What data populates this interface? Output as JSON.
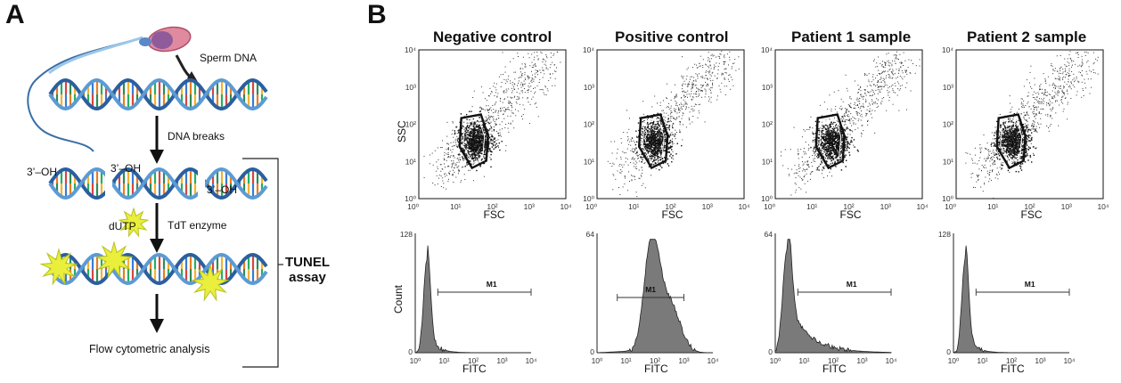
{
  "panelA": {
    "letter": "A",
    "sperm_dna": "Sperm DNA",
    "dna_breaks": "DNA breaks",
    "oh1": "3’–OH",
    "oh2": "3’–OH",
    "oh3": "3’–OH",
    "dutp": "dUTP",
    "tdt": "TdT enzyme",
    "tunel_line1": "TUNEL",
    "tunel_line2": "assay",
    "flow": "Flow cytometric analysis"
  },
  "panelB": {
    "letter": "B",
    "titles": [
      "Negative control",
      "Positive control",
      "Patient 1 sample",
      "Patient 2 sample"
    ],
    "scatter": {
      "ylabel": "SSC",
      "xlabel": "FSC",
      "y_ticks": [
        "10⁰",
        "10¹",
        "10²",
        "10³",
        "10⁴"
      ],
      "x_ticks": [
        "10⁰",
        "10¹",
        "10²",
        "10³",
        "10⁴"
      ]
    },
    "hist": {
      "ylabel": "Count",
      "xlabel": "FITC",
      "x_ticks": [
        "10⁰",
        "10¹",
        "10²",
        "10³",
        "10⁴"
      ],
      "ymax": [
        "128",
        "64",
        "64",
        "128"
      ],
      "gate_label": "M1"
    }
  },
  "chart_data": [
    {
      "type": "scatter",
      "title": "Negative control",
      "xlabel": "FSC",
      "ylabel": "SSC",
      "xscale": "log",
      "yscale": "log",
      "xlim": [
        1,
        10000
      ],
      "ylim": [
        1,
        10000
      ],
      "center": [
        35,
        35
      ]
    },
    {
      "type": "scatter",
      "title": "Positive control",
      "xlabel": "FSC",
      "ylabel": "SSC",
      "xscale": "log",
      "yscale": "log",
      "xlim": [
        1,
        10000
      ],
      "ylim": [
        1,
        10000
      ],
      "center": [
        38,
        35
      ]
    },
    {
      "type": "scatter",
      "title": "Patient 1 sample",
      "xlabel": "FSC",
      "ylabel": "SSC",
      "xscale": "log",
      "yscale": "log",
      "xlim": [
        1,
        10000
      ],
      "ylim": [
        1,
        10000
      ],
      "center": [
        35,
        35
      ]
    },
    {
      "type": "scatter",
      "title": "Patient 2 sample",
      "xlabel": "FSC",
      "ylabel": "SSC",
      "xscale": "log",
      "yscale": "log",
      "xlim": [
        1,
        10000
      ],
      "ylim": [
        1,
        10000
      ],
      "center": [
        35,
        35
      ]
    },
    {
      "type": "area",
      "xlabel": "FITC",
      "ylabel": "Count",
      "xscale": "log",
      "xlim": [
        1,
        10000
      ],
      "ylim": [
        0,
        128
      ],
      "gate": "M1",
      "gate_range": [
        6,
        10000
      ],
      "peak_x": 3
    },
    {
      "type": "area",
      "xlabel": "FITC",
      "ylabel": "Count",
      "xscale": "log",
      "xlim": [
        1,
        10000
      ],
      "ylim": [
        0,
        64
      ],
      "gate": "M1",
      "gate_range": [
        5,
        1000
      ],
      "peak_x": 70
    },
    {
      "type": "area",
      "xlabel": "FITC",
      "ylabel": "Count",
      "xscale": "log",
      "xlim": [
        1,
        10000
      ],
      "ylim": [
        0,
        64
      ],
      "gate": "M1",
      "gate_range": [
        6,
        10000
      ],
      "peak_x": 3
    },
    {
      "type": "area",
      "xlabel": "FITC",
      "ylabel": "Count",
      "xscale": "log",
      "xlim": [
        1,
        10000
      ],
      "ylim": [
        0,
        128
      ],
      "gate": "M1",
      "gate_range": [
        6,
        10000
      ],
      "peak_x": 3
    }
  ]
}
